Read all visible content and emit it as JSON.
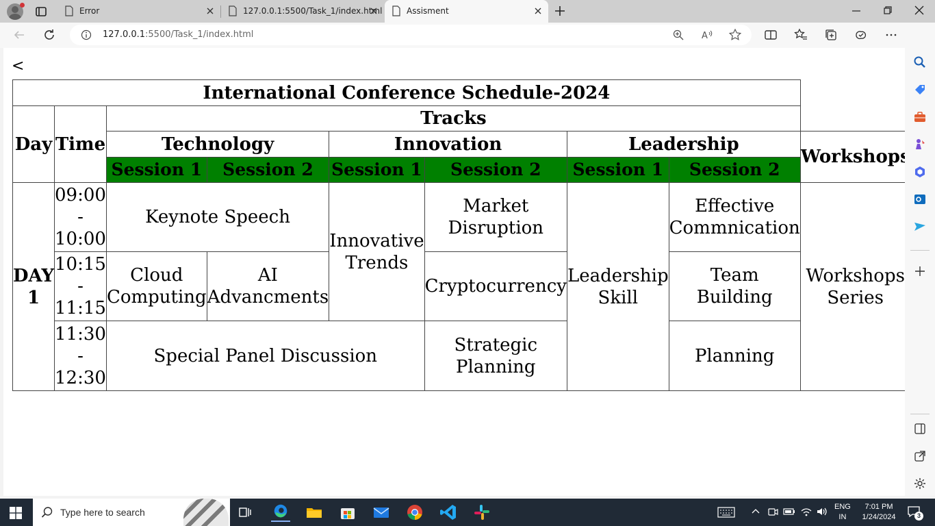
{
  "browser": {
    "tabs": [
      {
        "title": "Error",
        "active": false
      },
      {
        "title": "127.0.0.1:5500/Task_1/index.html",
        "active": false
      },
      {
        "title": "Assisment",
        "active": true
      }
    ],
    "address": {
      "host": "127.0.0.1",
      "rest": ":5500/Task_1/index.html"
    }
  },
  "page": {
    "back_link": "<",
    "schedule": {
      "title": "International Conference Schedule-2024",
      "headers": {
        "day": "Day",
        "time": "Time",
        "tracks": "Tracks",
        "technology": "Technology",
        "innovation": "Innovation",
        "leadership": "Leadership",
        "workshops": "Workshops",
        "session1": "Session 1",
        "session2": "Session 2"
      },
      "day_label_line1": "DAY",
      "day_label_line2": "1",
      "times": [
        {
          "start": "09:00",
          "sep": "-",
          "end": "10:00"
        },
        {
          "start": "10:15",
          "sep": "-",
          "end": "11:15"
        },
        {
          "start": "11:30",
          "sep": "-",
          "end": "12:30"
        }
      ],
      "cells": {
        "keynote": "Keynote Speech",
        "cloud_line1": "Cloud",
        "cloud_line2": "Computing",
        "ai_line1": "AI",
        "ai_line2": "Advancments",
        "panel": "Special Panel Discussion",
        "innovative_line1": "Innovative",
        "innovative_line2": "Trends",
        "market_line1": "Market",
        "market_line2": "Disruption",
        "crypto": "Cryptocurrency",
        "strategic_line1": "Strategic",
        "strategic_line2": "Planning",
        "leadership_line1": "Leadership",
        "leadership_line2": "Skill",
        "effective_line1": "Effective",
        "effective_line2": "Commnication",
        "team_line1": "Team",
        "team_line2": "Building",
        "planning": "Planning",
        "workshops_line1": "Workshops",
        "workshops_line2": "Series"
      },
      "colors": {
        "session_bg": "#008000"
      }
    }
  },
  "taskbar": {
    "search_placeholder": "Type here to search",
    "lang_line1": "ENG",
    "lang_line2": "IN",
    "time": "7:01 PM",
    "date": "1/24/2024",
    "notifications": "3"
  }
}
